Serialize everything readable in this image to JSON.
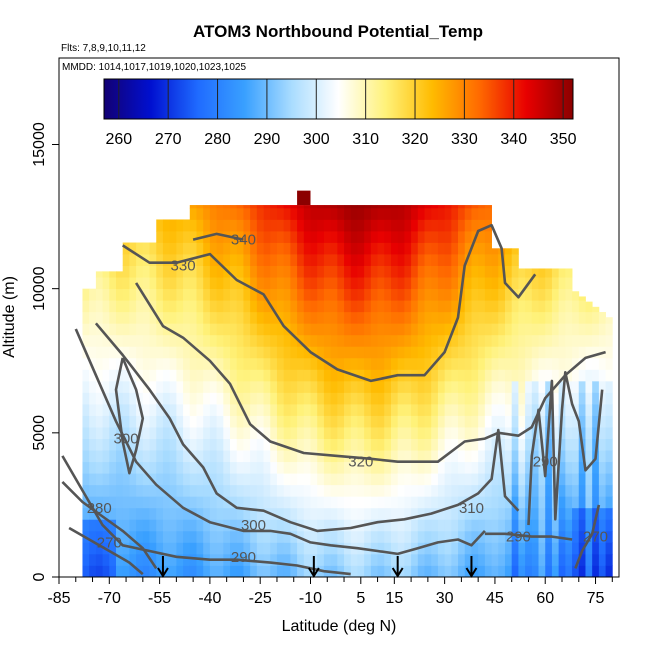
{
  "chart_data": {
    "type": "heatmap",
    "title": "ATOM3 Northbound Potential_Temp",
    "flights_text": "Flts: 7,8,9,10,11,12",
    "dates_text": "MMDD: 1014,1017,1019,1020,1023,1025",
    "xlabel": "Latitude (deg N)",
    "ylabel": "Altitude (m)",
    "xlim": [
      -85,
      82
    ],
    "ylim": [
      0,
      18000
    ],
    "x_ticks": [
      -85,
      -70,
      -55,
      -40,
      -25,
      -10,
      5,
      15,
      30,
      45,
      60,
      75
    ],
    "y_ticks": [
      0,
      5000,
      10000,
      15000
    ],
    "colorbar": {
      "ticks": [
        260,
        270,
        280,
        290,
        300,
        310,
        320,
        330,
        340,
        350
      ],
      "range": [
        257,
        352
      ],
      "colors": [
        "#120073",
        "#0010d0",
        "#1f6bff",
        "#39a0ff",
        "#a9dcff",
        "#ffffff",
        "#fff27a",
        "#ffbb00",
        "#ff6a00",
        "#e80000",
        "#8b0000"
      ]
    },
    "profile_markers_lat": [
      -54,
      -9,
      16,
      38
    ],
    "contours": [
      {
        "level": "340",
        "label_at": [
          -30,
          11700
        ],
        "points": [
          [
            -45,
            11700
          ],
          [
            -38,
            11900
          ],
          [
            -30,
            11700
          ]
        ]
      },
      {
        "level": "330",
        "label_at": [
          -48,
          10800
        ],
        "points": [
          [
            -66,
            11500
          ],
          [
            -58,
            10900
          ],
          [
            -50,
            10900
          ],
          [
            -40,
            11200
          ],
          [
            -32,
            10300
          ],
          [
            -24,
            9800
          ],
          [
            -18,
            8700
          ],
          [
            -10,
            7800
          ],
          [
            -2,
            7200
          ],
          [
            8,
            6800
          ],
          [
            16,
            7000
          ],
          [
            24,
            7000
          ],
          [
            30,
            7800
          ],
          [
            34,
            9000
          ],
          [
            36,
            10800
          ],
          [
            40,
            12000
          ],
          [
            44,
            12200
          ],
          [
            47,
            11400
          ],
          [
            48,
            10200
          ],
          [
            52,
            9700
          ],
          [
            57,
            10500
          ]
        ]
      },
      {
        "level": "320",
        "label_at": [
          5,
          4000
        ],
        "points": [
          [
            -62,
            10200
          ],
          [
            -54,
            8700
          ],
          [
            -48,
            8300
          ],
          [
            -40,
            7500
          ],
          [
            -34,
            6700
          ],
          [
            -28,
            5300
          ],
          [
            -22,
            4700
          ],
          [
            -12,
            4300
          ],
          [
            -2,
            4200
          ],
          [
            8,
            4100
          ],
          [
            16,
            4000
          ],
          [
            28,
            4000
          ],
          [
            36,
            4700
          ],
          [
            42,
            4800
          ],
          [
            46,
            5000
          ],
          [
            52,
            4900
          ],
          [
            56,
            5200
          ],
          [
            60,
            6200
          ],
          [
            66,
            7000
          ],
          [
            72,
            7600
          ],
          [
            78,
            7800
          ]
        ]
      },
      {
        "level": "310",
        "label_at": [
          38,
          2400
        ],
        "points": [
          [
            -74,
            8800
          ],
          [
            -66,
            7700
          ],
          [
            -58,
            6500
          ],
          [
            -52,
            5500
          ],
          [
            -48,
            4600
          ],
          [
            -42,
            3800
          ],
          [
            -38,
            2900
          ],
          [
            -32,
            2400
          ],
          [
            -24,
            2300
          ],
          [
            -16,
            1900
          ],
          [
            -8,
            1600
          ],
          [
            2,
            1700
          ],
          [
            10,
            1900
          ],
          [
            18,
            2000
          ],
          [
            26,
            2200
          ],
          [
            34,
            2500
          ],
          [
            40,
            2900
          ],
          [
            44,
            3400
          ],
          [
            46,
            5100
          ],
          [
            48,
            2800
          ],
          [
            52,
            2300
          ]
        ]
      },
      {
        "level": "300",
        "label_at": [
          -65,
          4800
        ],
        "points": [
          [
            -66,
            7600
          ],
          [
            -62,
            6500
          ],
          [
            -60,
            5500
          ],
          [
            -62,
            4400
          ],
          [
            -64,
            3600
          ],
          [
            -66,
            4700
          ],
          [
            -68,
            6500
          ],
          [
            -66,
            7600
          ]
        ]
      },
      {
        "level": "300",
        "label_at": [
          -27,
          1800
        ],
        "points": [
          [
            -80,
            8600
          ],
          [
            -74,
            7000
          ],
          [
            -68,
            5400
          ],
          [
            -62,
            4000
          ],
          [
            -56,
            3200
          ],
          [
            -48,
            2400
          ],
          [
            -40,
            1900
          ],
          [
            -30,
            1600
          ],
          [
            -22,
            1600
          ],
          [
            -16,
            1500
          ],
          [
            -10,
            1200
          ],
          [
            -4,
            1100
          ],
          [
            4,
            1000
          ],
          [
            10,
            900
          ],
          [
            16,
            800
          ],
          [
            22,
            1000
          ],
          [
            28,
            1200
          ],
          [
            34,
            1300
          ],
          [
            38,
            1100
          ],
          [
            42,
            1600
          ]
        ]
      },
      {
        "level": "290",
        "label_at": [
          -30,
          700
        ],
        "points": [
          [
            -84,
            4200
          ],
          [
            -78,
            3000
          ],
          [
            -72,
            1800
          ],
          [
            -66,
            1100
          ],
          [
            -58,
            900
          ],
          [
            -50,
            700
          ],
          [
            -40,
            600
          ],
          [
            -32,
            600
          ],
          [
            -22,
            500
          ],
          [
            -14,
            400
          ],
          [
            -6,
            200
          ],
          [
            2,
            100
          ]
        ]
      },
      {
        "level": "290",
        "label_at": [
          52,
          1400
        ],
        "points": [
          [
            42,
            1500
          ],
          [
            48,
            1500
          ],
          [
            56,
            1400
          ],
          [
            62,
            1400
          ],
          [
            68,
            1300
          ]
        ]
      },
      {
        "level": "280",
        "label_at": [
          -73,
          2400
        ],
        "points": [
          [
            -84,
            3300
          ],
          [
            -78,
            2600
          ],
          [
            -72,
            2100
          ],
          [
            -66,
            1600
          ],
          [
            -60,
            1000
          ],
          [
            -56,
            300
          ]
        ]
      },
      {
        "level": "270",
        "label_at": [
          -70,
          1200
        ],
        "points": [
          [
            -82,
            1700
          ],
          [
            -76,
            1300
          ],
          [
            -70,
            900
          ],
          [
            -64,
            500
          ],
          [
            -60,
            100
          ]
        ]
      },
      {
        "level": "290",
        "label_at": [
          60,
          4000
        ],
        "points": [
          [
            55,
            1800
          ],
          [
            56,
            4200
          ],
          [
            58,
            5800
          ],
          [
            60,
            3500
          ],
          [
            62,
            6800
          ],
          [
            63,
            2000
          ],
          [
            65,
            5800
          ],
          [
            66,
            7100
          ],
          [
            68,
            6000
          ],
          [
            70,
            5400
          ],
          [
            72,
            3700
          ],
          [
            75,
            4100
          ],
          [
            77,
            6500
          ]
        ]
      },
      {
        "level": "270",
        "label_at": [
          75,
          1400
        ],
        "points": [
          [
            69,
            300
          ],
          [
            71,
            900
          ],
          [
            74,
            1500
          ],
          [
            76,
            2500
          ]
        ]
      }
    ]
  }
}
